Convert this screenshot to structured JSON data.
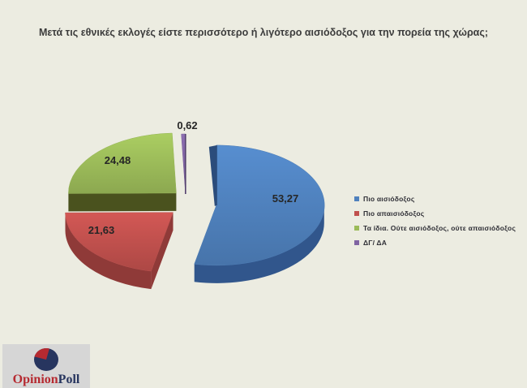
{
  "page": {
    "background": "#ECECE1"
  },
  "chart_data": {
    "type": "pie",
    "pie_style": "3d-exploded",
    "title": "Μετά τις εθνικές εκλογές είστε περισσότερο ή λιγότερο αισιόδοξος για την πορεία της χώρας;",
    "direction": "clockwise",
    "start_angle": 0,
    "legend_position": "right",
    "data_label_color": "#262626",
    "slices": [
      {
        "label": "Πιο αισιόδοξος",
        "value": 53.27,
        "display": "53,27",
        "color": "#4F81BD",
        "side_color": "#31568C"
      },
      {
        "label": "Πιο απαισιόδοξος",
        "value": 21.63,
        "display": "21,63",
        "color": "#C0504D",
        "side_color": "#8F3A38"
      },
      {
        "label": "Τα ίδια. Ούτε αισιόδοξος, ούτε απαισιόδοξος",
        "value": 24.48,
        "display": "24,48",
        "color": "#9BBB59",
        "side_color": "#4A521E"
      },
      {
        "label": "ΔΓ/ ΔΑ",
        "value": 0.62,
        "display": "0,62",
        "color": "#8064A2",
        "side_color": "#54416E"
      }
    ]
  },
  "logo": {
    "opinion": "Opinion",
    "poll": "Poll",
    "opinion_color": "#B62A31",
    "poll_color": "#27355F",
    "pie_main_color": "#27355F",
    "pie_wedge_color": "#B62A31"
  }
}
